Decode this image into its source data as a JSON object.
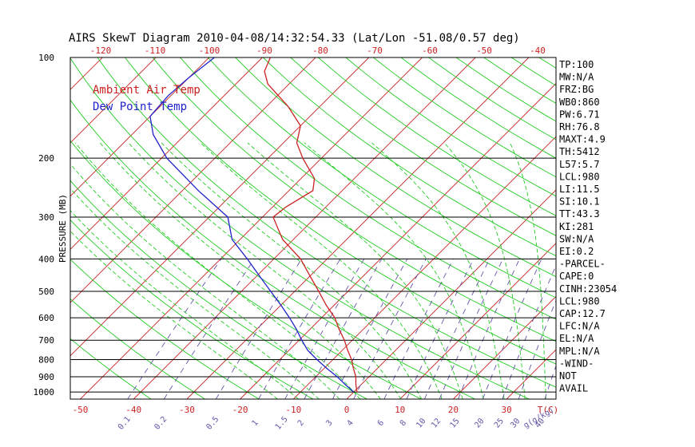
{
  "chart_data": {
    "type": "line",
    "title": "AIRS SkewT Diagram 2010-04-08/14:32:54.33 (Lat/Lon -51.08/0.57 deg)",
    "ylabel": "PRESSURE (MB)",
    "xlabel": "T(C)",
    "mixing_ratio_unit": "g(g/kg)",
    "ylim": [
      1050,
      100
    ],
    "y_scale": "log",
    "grid": true,
    "pressure_ticks": [
      {
        "p": 100,
        "label": "100"
      },
      {
        "p": 200,
        "label": "200"
      },
      {
        "p": 300,
        "label": "300"
      },
      {
        "p": 400,
        "label": "400"
      },
      {
        "p": 500,
        "label": "500"
      },
      {
        "p": 600,
        "label": "600"
      },
      {
        "p": 700,
        "label": "700"
      },
      {
        "p": 800,
        "label": "800"
      },
      {
        "p": 900,
        "label": "900"
      },
      {
        "p": 1000,
        "label": "1000"
      }
    ],
    "bottom_temp_ticks": [
      "-50",
      "-40",
      "-30",
      "-20",
      "-10",
      "0",
      "10",
      "20",
      "30"
    ],
    "top_temp_ticks": [
      "-120",
      "-110",
      "-100",
      "-90",
      "-80",
      "-70",
      "-60",
      "-50",
      "-40"
    ],
    "mixing_ratio_ticks": [
      "0.1",
      "0.2",
      "0.5",
      "1",
      "1.5",
      "2",
      "3",
      "4",
      "6",
      "8",
      "10",
      "12",
      "15",
      "20",
      "25",
      "30",
      "40"
    ],
    "legend": [
      {
        "label": "Ambient Air Temp",
        "color": "#cc2222"
      },
      {
        "label": "Dew Point Temp",
        "color": "#2222cc"
      }
    ],
    "legend_placement": "top-left",
    "series": [
      {
        "name": "Ambient Air Temp",
        "color": "#cc2222",
        "points": [
          {
            "p": 1000,
            "t": 0.6
          },
          {
            "p": 950,
            "t": -1.0
          },
          {
            "p": 900,
            "t": -2.5
          },
          {
            "p": 850,
            "t": -4.5
          },
          {
            "p": 800,
            "t": -6.5
          },
          {
            "p": 750,
            "t": -9.0
          },
          {
            "p": 700,
            "t": -11.5
          },
          {
            "p": 650,
            "t": -14.5
          },
          {
            "p": 600,
            "t": -17.5
          },
          {
            "p": 550,
            "t": -21.5
          },
          {
            "p": 500,
            "t": -25.5
          },
          {
            "p": 450,
            "t": -30.0
          },
          {
            "p": 400,
            "t": -35.0
          },
          {
            "p": 350,
            "t": -42.0
          },
          {
            "p": 300,
            "t": -48.0
          },
          {
            "p": 280,
            "t": -47.5
          },
          {
            "p": 250,
            "t": -45.5
          },
          {
            "p": 230,
            "t": -47.5
          },
          {
            "p": 200,
            "t": -53.5
          },
          {
            "p": 180,
            "t": -57.5
          },
          {
            "p": 160,
            "t": -60.0
          },
          {
            "p": 140,
            "t": -66.0
          },
          {
            "p": 120,
            "t": -74.0
          },
          {
            "p": 110,
            "t": -77.0
          },
          {
            "p": 100,
            "t": -78.5
          }
        ]
      },
      {
        "name": "Dew Point Temp",
        "color": "#2222cc",
        "points": [
          {
            "p": 1000,
            "t": 0.0
          },
          {
            "p": 950,
            "t": -3.0
          },
          {
            "p": 900,
            "t": -6.0
          },
          {
            "p": 850,
            "t": -9.5
          },
          {
            "p": 800,
            "t": -13.0
          },
          {
            "p": 750,
            "t": -16.5
          },
          {
            "p": 700,
            "t": -19.5
          },
          {
            "p": 650,
            "t": -22.5
          },
          {
            "p": 600,
            "t": -26.0
          },
          {
            "p": 550,
            "t": -30.0
          },
          {
            "p": 500,
            "t": -34.5
          },
          {
            "p": 450,
            "t": -39.5
          },
          {
            "p": 400,
            "t": -45.0
          },
          {
            "p": 350,
            "t": -51.5
          },
          {
            "p": 300,
            "t": -56.5
          },
          {
            "p": 250,
            "t": -67.0
          },
          {
            "p": 200,
            "t": -79.0
          },
          {
            "p": 170,
            "t": -86.0
          },
          {
            "p": 150,
            "t": -90.0
          },
          {
            "p": 130,
            "t": -90.5
          },
          {
            "p": 115,
            "t": -90.0
          },
          {
            "p": 100,
            "t": -89.0
          }
        ]
      }
    ],
    "indices": [
      "TP:100",
      "MW:N/A",
      "FRZ:BG",
      "WB0:860",
      "PW:6.71",
      "RH:76.8",
      "MAXT:4.9",
      "TH:5412",
      "L57:5.7",
      "LCL:980",
      "LI:11.5",
      "SI:10.1",
      "TT:43.3",
      "KI:281",
      "SW:N/A",
      "EI:0.2",
      "-PARCEL-",
      "CAPE:0",
      "CINH:23054",
      "LCL:980",
      "CAP:12.7",
      "LFC:N/A",
      "EL:N/A",
      "MPL:N/A",
      "-WIND-",
      "NOT",
      "AVAIL"
    ],
    "colors": {
      "isotherm": "#cc2222",
      "dry_adiabat": "#22cc22",
      "moist_adiabat": "#22cc22",
      "mixing_ratio": "#6655aa",
      "isobar": "#000000",
      "text": "#000000"
    }
  }
}
